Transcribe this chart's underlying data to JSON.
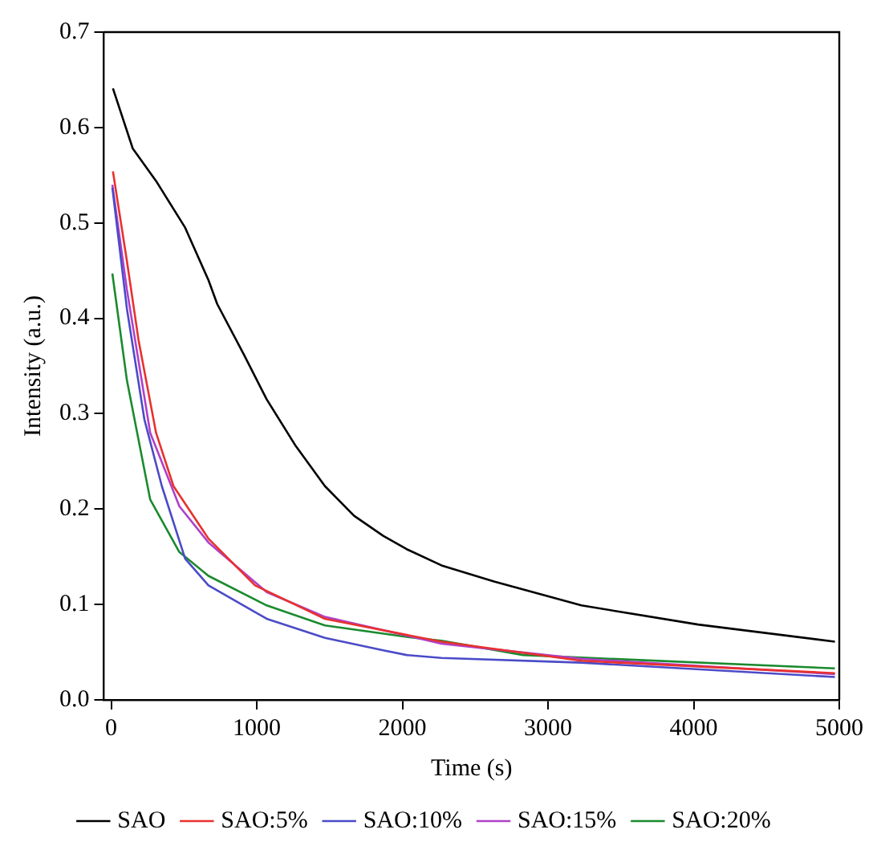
{
  "chart_data": {
    "type": "line",
    "xlabel": "Time (s)",
    "ylabel": "Intensity (a.u.)",
    "xlim": [
      -50,
      5000
    ],
    "xticks": [
      0,
      1000,
      2000,
      3000,
      4000,
      5000
    ],
    "ylim": [
      0,
      0.7
    ],
    "yticks": [
      {
        "value": 0,
        "label": "0.0"
      },
      0.1,
      0.2,
      0.3,
      0.4,
      0.5,
      0.6,
      0.7
    ],
    "grid": false,
    "legend": "bottom",
    "marker": "none",
    "line_style": "solid",
    "series": [
      {
        "name": "SAO",
        "color": "#000000",
        "x": [
          12,
          148,
          308,
          508,
          668,
          728,
          908,
          1068,
          1268,
          1468,
          1668,
          1868,
          2029,
          2268,
          2629,
          3229,
          4030,
          4970
        ],
        "values": [
          0.641,
          0.578,
          0.544,
          0.495,
          0.44,
          0.415,
          0.363,
          0.315,
          0.266,
          0.224,
          0.193,
          0.172,
          0.158,
          0.141,
          0.124,
          0.099,
          0.079,
          0.061
        ]
      },
      {
        "name": "SAO:5%",
        "color": "#e8312f",
        "x": [
          12,
          108,
          188,
          308,
          428,
          668,
          988,
          1468,
          2268,
          3229,
          4970
        ],
        "values": [
          0.554,
          0.46,
          0.377,
          0.28,
          0.224,
          0.169,
          0.12,
          0.085,
          0.061,
          0.041,
          0.028
        ]
      },
      {
        "name": "SAO:10%",
        "color": "#4b4bc8",
        "x": [
          8,
          108,
          228,
          348,
          508,
          668,
          1068,
          1468,
          1868,
          2029,
          2268,
          3229,
          4970
        ],
        "values": [
          0.537,
          0.41,
          0.294,
          0.224,
          0.148,
          0.12,
          0.085,
          0.065,
          0.052,
          0.047,
          0.044,
          0.039,
          0.024
        ]
      },
      {
        "name": "SAO:15%",
        "color": "#b040c8",
        "x": [
          8,
          108,
          268,
          468,
          668,
          1068,
          1468,
          2268,
          3229,
          4970
        ],
        "values": [
          0.54,
          0.43,
          0.28,
          0.203,
          0.165,
          0.113,
          0.087,
          0.059,
          0.043,
          0.027
        ]
      },
      {
        "name": "SAO:20%",
        "color": "#1a8a2e",
        "x": [
          8,
          108,
          268,
          468,
          668,
          1068,
          1468,
          2029,
          2268,
          2829,
          4970
        ],
        "values": [
          0.447,
          0.335,
          0.21,
          0.155,
          0.13,
          0.099,
          0.078,
          0.066,
          0.062,
          0.047,
          0.033
        ]
      }
    ]
  }
}
